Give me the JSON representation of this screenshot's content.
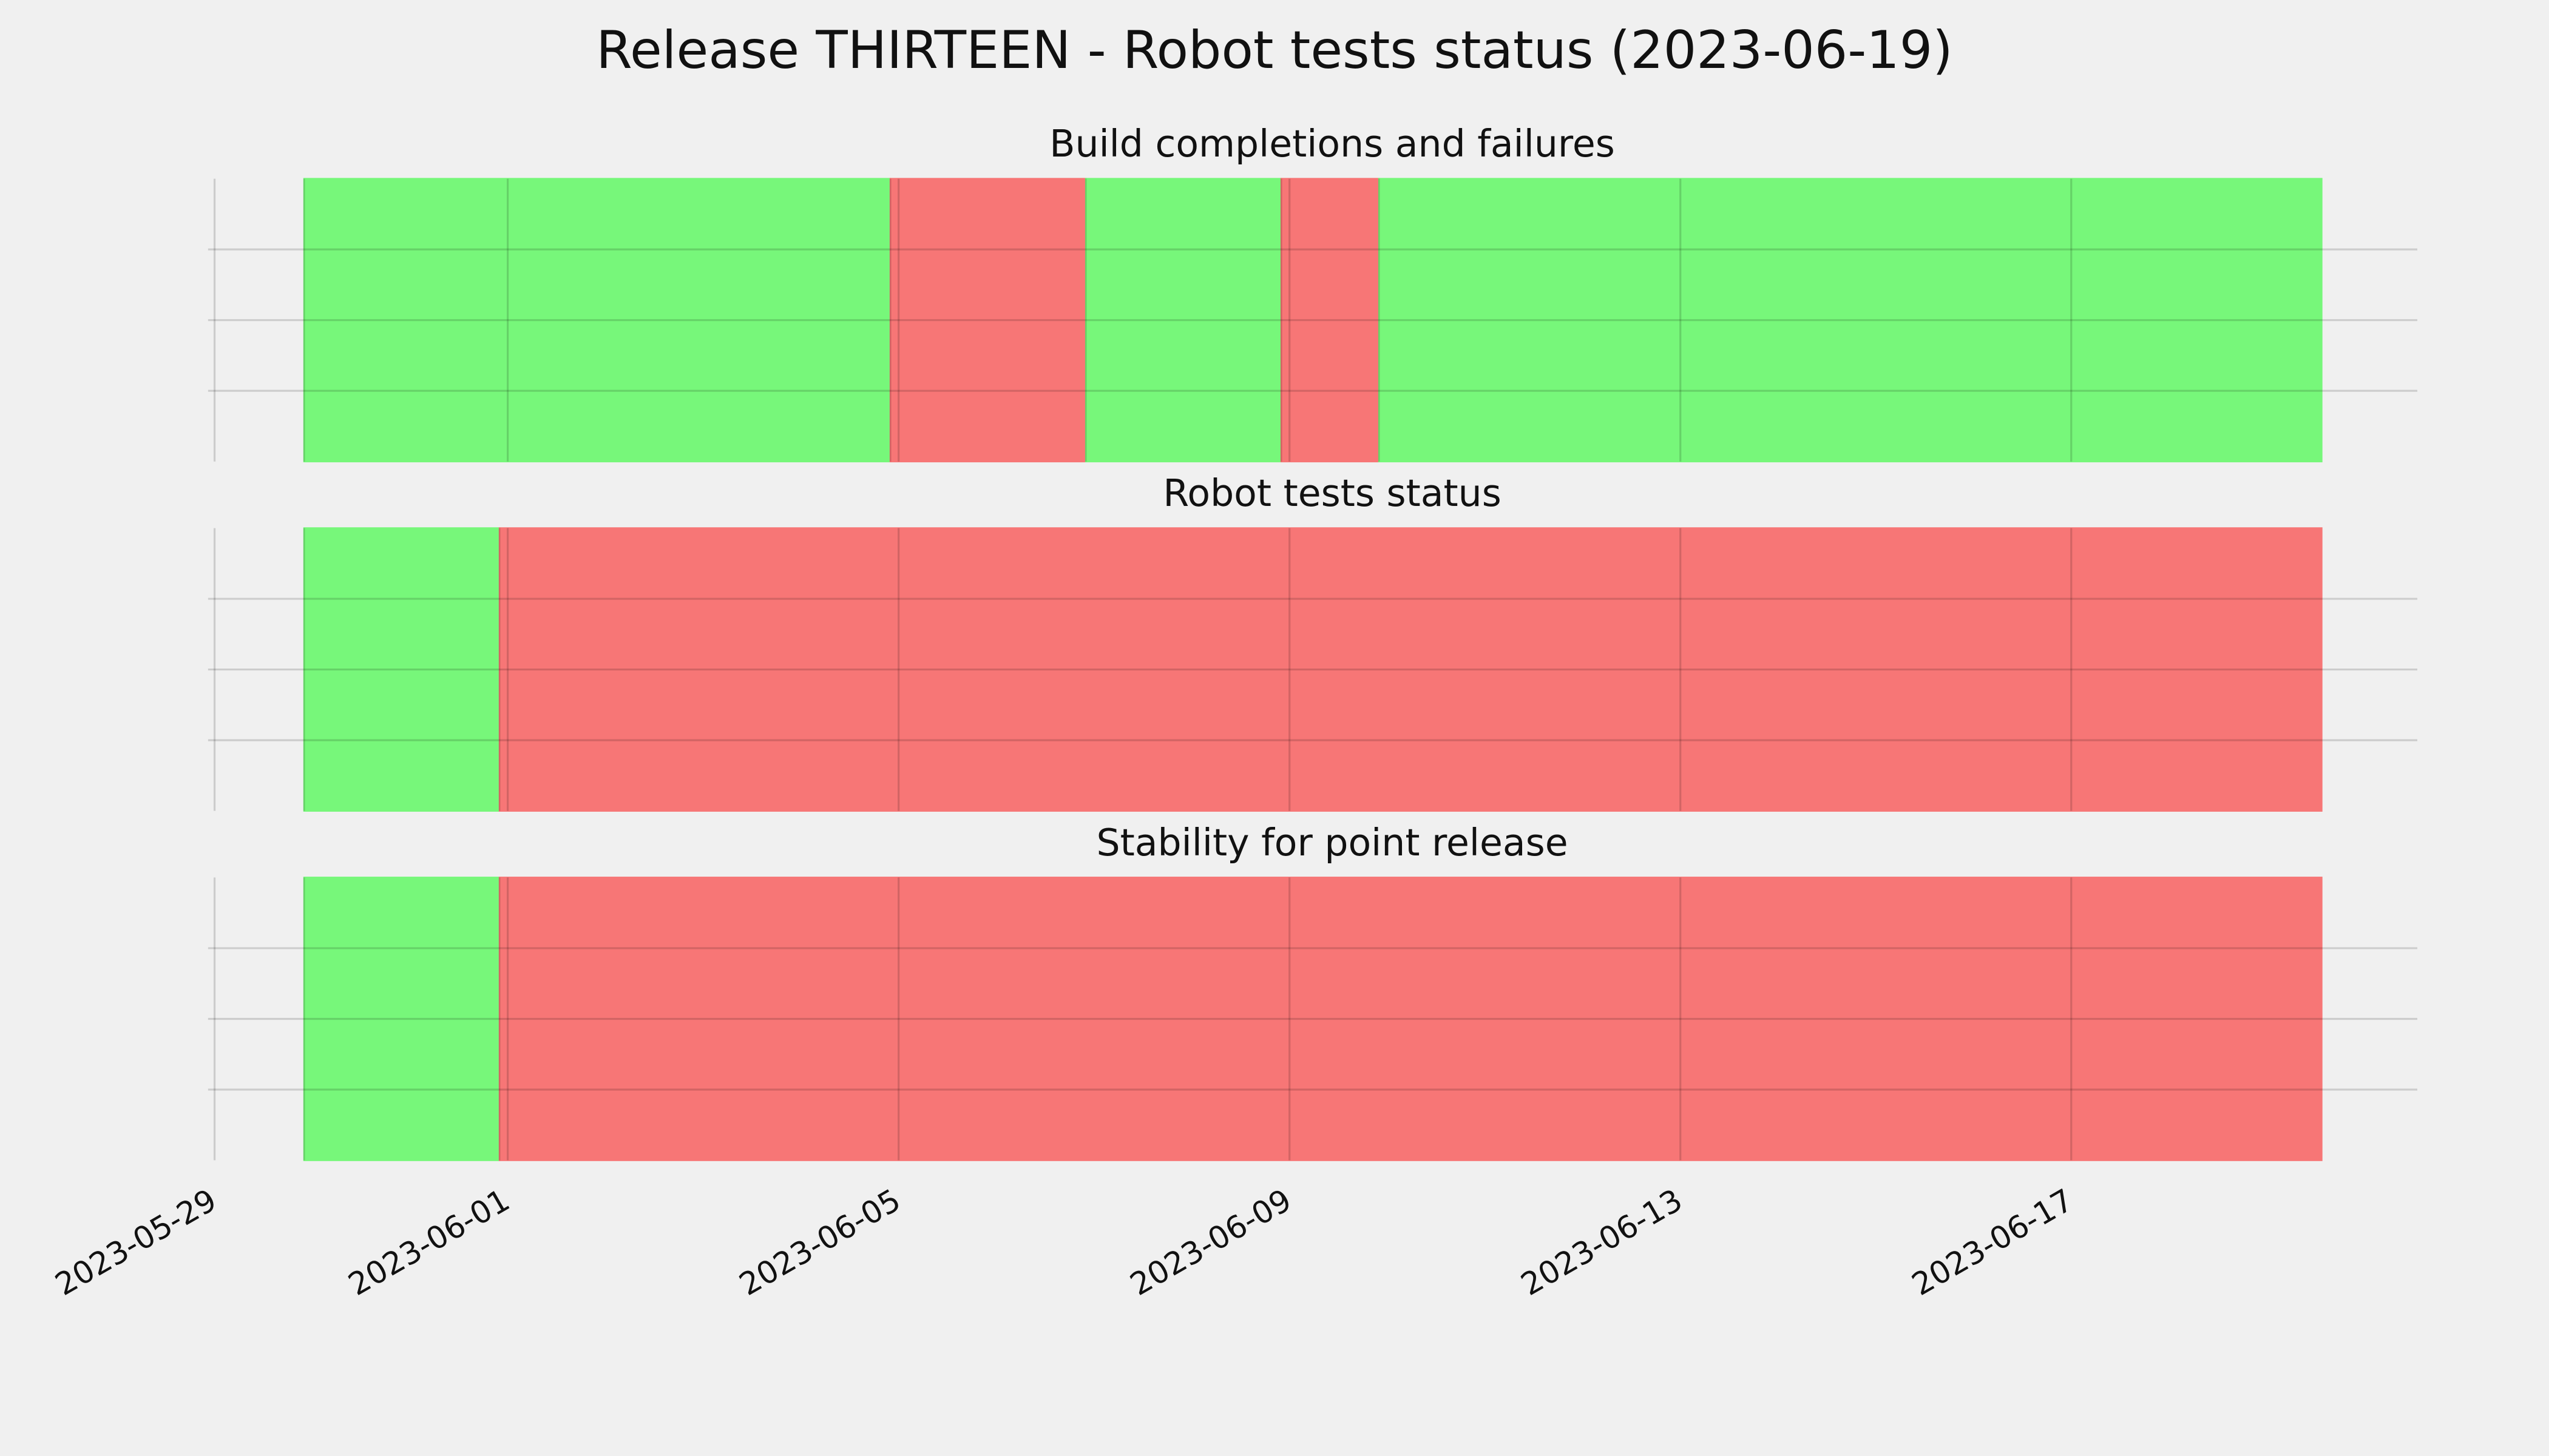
{
  "chart_data": {
    "type": "timeline",
    "title": "Release THIRTEEN - Robot tests status (2023-06-19)",
    "xlim": [
      "2023-05-29T00:00:00Z",
      "2023-06-20T13:00:00Z"
    ],
    "xticks": [
      "2023-05-29",
      "2023-06-01",
      "2023-06-05",
      "2023-06-09",
      "2023-06-13",
      "2023-06-17"
    ],
    "ylim": [
      0,
      1
    ],
    "yticks": [
      0.25,
      0.5,
      0.75
    ],
    "grid": true,
    "panels": [
      {
        "title": "Build completions and failures",
        "spans": [
          {
            "start": "2023-05-29T22:00:00Z",
            "end": "2023-06-04T22:00:00Z",
            "color": "#77f77a"
          },
          {
            "start": "2023-06-04T22:00:00Z",
            "end": "2023-06-06T22:00:00Z",
            "color": "#f77676"
          },
          {
            "start": "2023-06-06T22:00:00Z",
            "end": "2023-06-08T22:00:00Z",
            "color": "#77f77a"
          },
          {
            "start": "2023-06-08T22:00:00Z",
            "end": "2023-06-09T22:00:00Z",
            "color": "#f77676"
          },
          {
            "start": "2023-06-09T22:00:00Z",
            "end": "2023-06-19T13:30:00Z",
            "color": "#77f77a"
          }
        ]
      },
      {
        "title": "Robot tests status",
        "spans": [
          {
            "start": "2023-05-29T22:00:00Z",
            "end": "2023-05-31T22:00:00Z",
            "color": "#77f77a"
          },
          {
            "start": "2023-05-31T22:00:00Z",
            "end": "2023-06-19T13:30:00Z",
            "color": "#f77676"
          }
        ]
      },
      {
        "title": "Stability for point release",
        "spans": [
          {
            "start": "2023-05-29T22:00:00Z",
            "end": "2023-05-31T22:00:00Z",
            "color": "#77f77a"
          },
          {
            "start": "2023-05-31T22:00:00Z",
            "end": "2023-06-19T13:30:00Z",
            "color": "#f77676"
          }
        ]
      }
    ]
  }
}
